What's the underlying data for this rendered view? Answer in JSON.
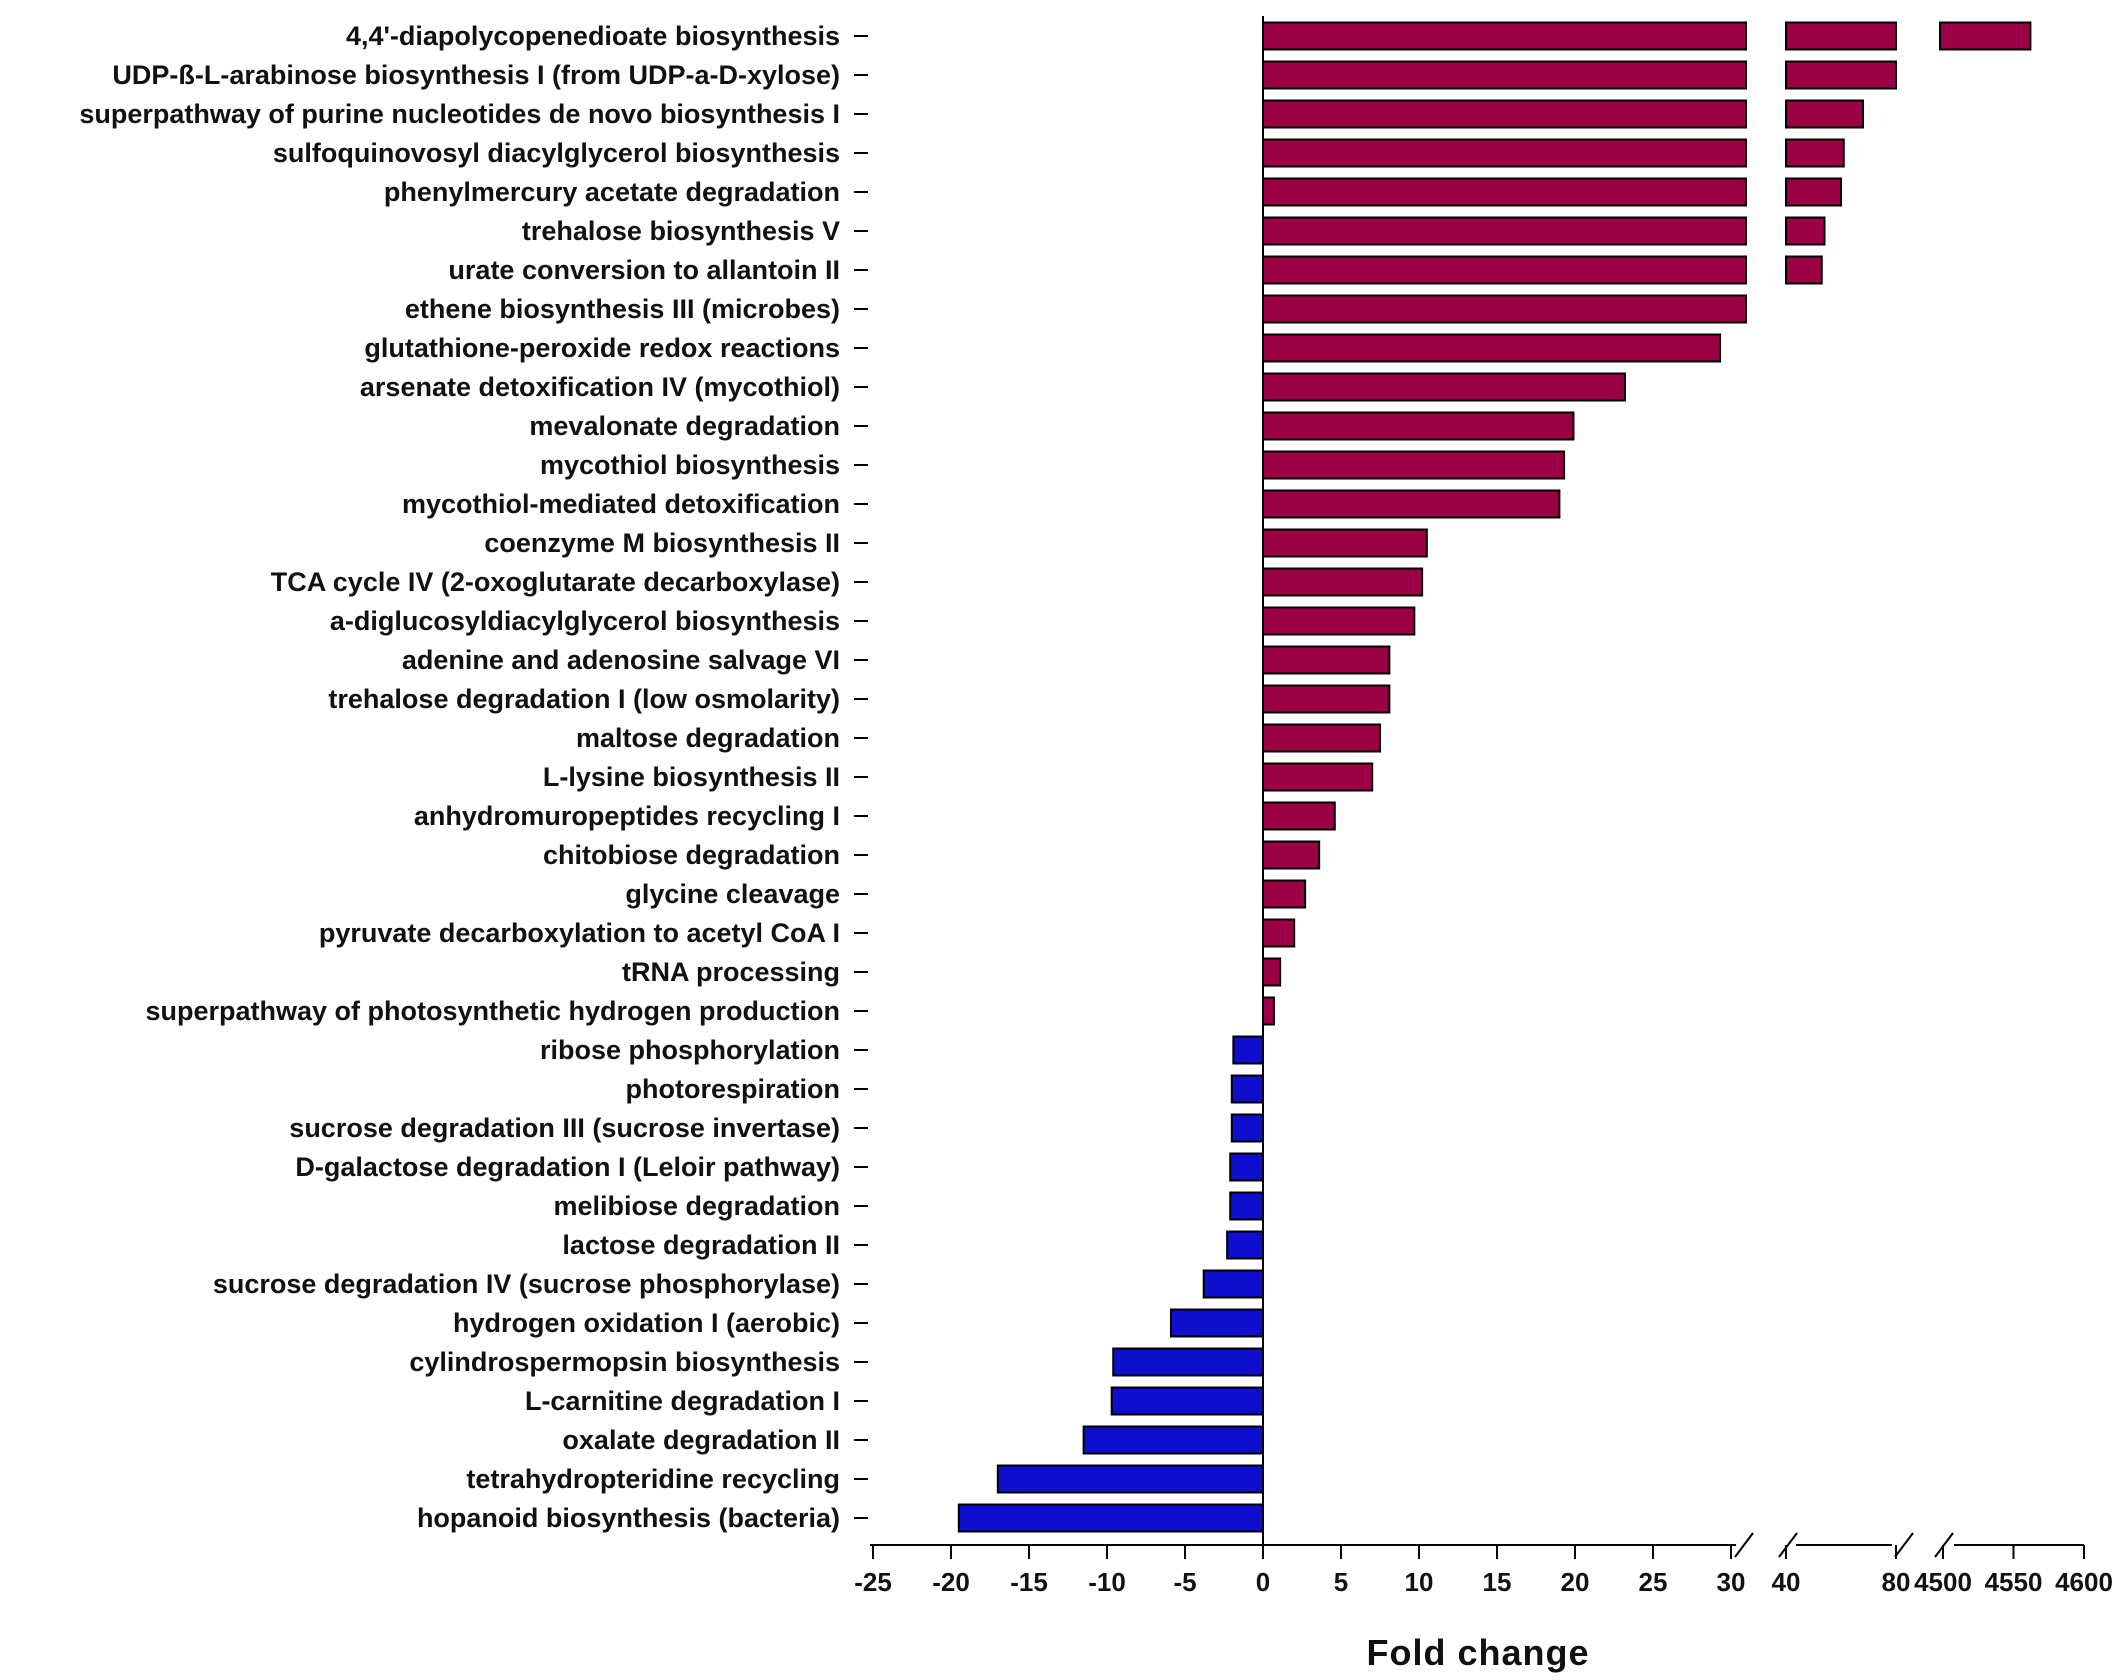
{
  "colors": {
    "positive": "#9B0045",
    "negative": "#0E0ECC",
    "axis": "#000000"
  },
  "chart_data": {
    "type": "bar",
    "orientation": "horizontal",
    "xlabel": "Fold change",
    "xlim": [
      -25,
      4600
    ],
    "axis_breaks": [
      [
        30,
        40
      ],
      [
        40,
        80
      ],
      [
        80,
        4500
      ]
    ],
    "xticks": [
      "-25",
      "-20",
      "-15",
      "-10",
      "-5",
      "0",
      "5",
      "10",
      "15",
      "20",
      "25",
      "30",
      "40",
      "80",
      "4500",
      "4550",
      "4600"
    ],
    "categories": [
      "4,4'-diapolycopenedioate biosynthesis",
      "UDP-ß-L-arabinose biosynthesis I (from UDP-a-D-xylose)",
      "superpathway of purine nucleotides de novo biosynthesis I",
      "sulfoquinovosyl diacylglycerol biosynthesis",
      "phenylmercury acetate degradation",
      "trehalose biosynthesis V",
      "urate conversion to allantoin II",
      "ethene biosynthesis III (microbes)",
      "glutathione-peroxide redox reactions",
      "arsenate detoxification IV (mycothiol)",
      "mevalonate degradation",
      "mycothiol biosynthesis",
      "mycothiol-mediated detoxification",
      "coenzyme M biosynthesis II",
      "TCA cycle IV (2-oxoglutarate decarboxylase)",
      "a-diglucosyldiacylglycerol biosynthesis",
      "adenine and adenosine salvage VI",
      "trehalose degradation I (low osmolarity)",
      "maltose degradation",
      "L-lysine biosynthesis II",
      "anhydromuropeptides recycling I",
      "chitobiose degradation",
      "glycine cleavage",
      "pyruvate decarboxylation to acetyl CoA I",
      "tRNA processing",
      "superpathway of photosynthetic hydrogen production",
      "ribose phosphorylation",
      "photorespiration",
      "sucrose degradation III (sucrose invertase)",
      "D-galactose degradation I (Leloir pathway)",
      "melibiose degradation",
      "lactose degradation II",
      "sucrose degradation IV (sucrose phosphorylase)",
      "hydrogen oxidation I (aerobic)",
      "cylindrospermopsin biosynthesis",
      "L-carnitine degradation I",
      "oxalate degradation II",
      "tetrahydropteridine recycling",
      "hopanoid biosynthesis (bacteria)"
    ],
    "values": [
      4562,
      86,
      68,
      61,
      60,
      54,
      53,
      30.2,
      29.3,
      23.2,
      19.9,
      19.3,
      19.0,
      10.5,
      10.2,
      9.7,
      8.1,
      8.1,
      7.5,
      7.0,
      4.6,
      3.6,
      2.7,
      2.0,
      1.1,
      0.7,
      -1.9,
      -2.0,
      -2.0,
      -2.1,
      -2.1,
      -2.3,
      -3.8,
      -5.9,
      -9.6,
      -9.7,
      -11.5,
      -17.0,
      -19.5
    ]
  }
}
